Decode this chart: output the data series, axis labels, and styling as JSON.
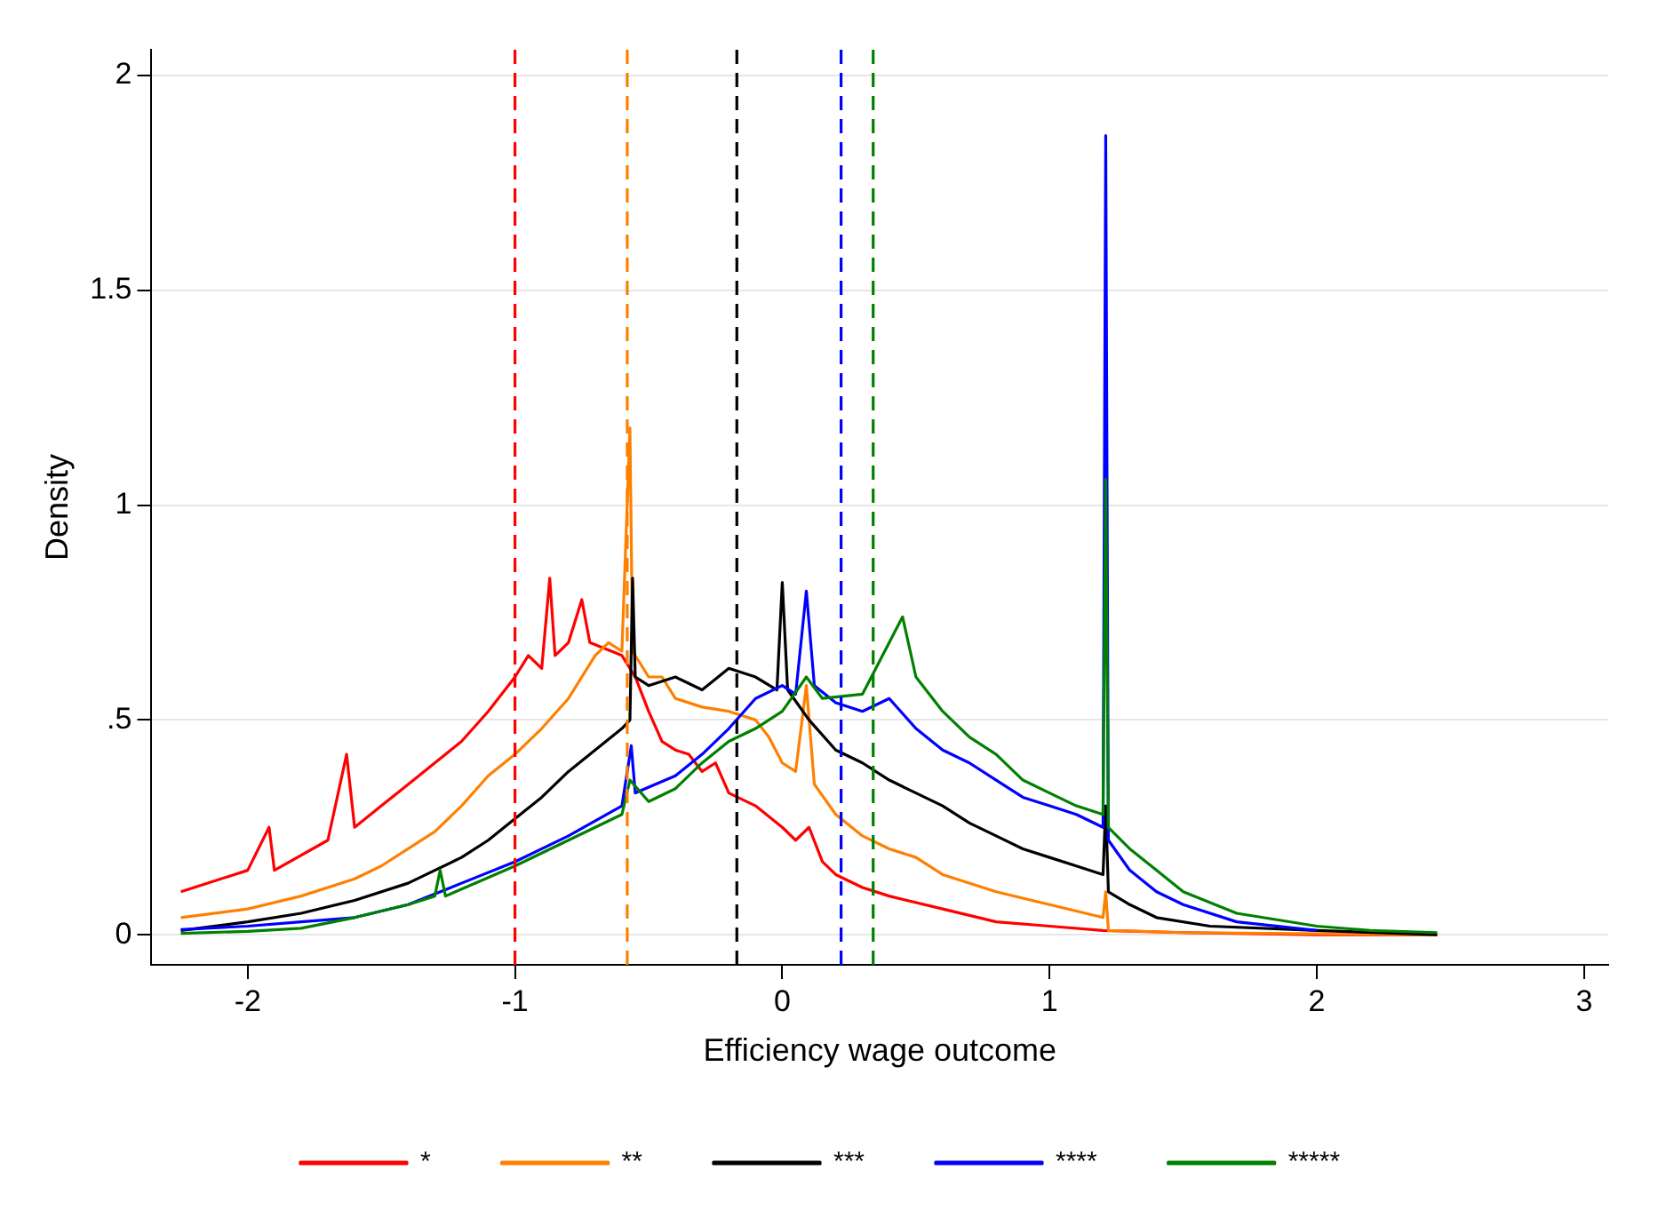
{
  "chart_data": {
    "type": "line",
    "xlabel": "Efficiency wage outcome",
    "ylabel": "Density",
    "xlim": [
      -2.36,
      3.09
    ],
    "xticks": [
      -2,
      -1,
      0,
      1,
      2,
      3
    ],
    "ylim": [
      -0.07,
      2.06
    ],
    "yticks": [
      0,
      {
        "value": 0.5,
        "label": ".5"
      },
      1,
      1.5,
      2
    ],
    "grid": "y",
    "legend": "bottom",
    "marker": "none",
    "line_style": "solid",
    "series": [
      {
        "name": "*",
        "color": "#ff0000",
        "x": [
          -2.25,
          -2.0,
          -1.92,
          -1.9,
          -1.7,
          -1.63,
          -1.6,
          -1.5,
          -1.4,
          -1.3,
          -1.2,
          -1.1,
          -1.0,
          -0.95,
          -0.9,
          -0.87,
          -0.85,
          -0.8,
          -0.75,
          -0.72,
          -0.6,
          -0.55,
          -0.5,
          -0.45,
          -0.4,
          -0.35,
          -0.3,
          -0.25,
          -0.2,
          -0.1,
          0,
          0.05,
          0.1,
          0.15,
          0.2,
          0.3,
          0.4,
          0.6,
          0.8,
          1.0,
          1.2,
          1.5,
          2.0,
          2.45
        ],
        "values": [
          0.1,
          0.15,
          0.25,
          0.15,
          0.22,
          0.42,
          0.25,
          0.3,
          0.35,
          0.4,
          0.45,
          0.52,
          0.6,
          0.65,
          0.62,
          0.83,
          0.65,
          0.68,
          0.78,
          0.68,
          0.65,
          0.6,
          0.52,
          0.45,
          0.43,
          0.42,
          0.38,
          0.4,
          0.33,
          0.3,
          0.25,
          0.22,
          0.25,
          0.17,
          0.14,
          0.11,
          0.09,
          0.06,
          0.03,
          0.02,
          0.01,
          0.005,
          0,
          0
        ]
      },
      {
        "name": "**",
        "color": "#ff8000",
        "x": [
          -2.25,
          -2.0,
          -1.8,
          -1.6,
          -1.5,
          -1.4,
          -1.3,
          -1.2,
          -1.1,
          -1.0,
          -0.9,
          -0.8,
          -0.75,
          -0.7,
          -0.65,
          -0.6,
          -0.57,
          -0.56,
          -0.5,
          -0.45,
          -0.4,
          -0.3,
          -0.2,
          -0.1,
          -0.05,
          0,
          0.05,
          0.09,
          0.12,
          0.2,
          0.3,
          0.4,
          0.5,
          0.6,
          0.8,
          1.0,
          1.2,
          1.21,
          1.22,
          1.5,
          2.45
        ],
        "values": [
          0.04,
          0.06,
          0.09,
          0.13,
          0.16,
          0.2,
          0.24,
          0.3,
          0.37,
          0.42,
          0.48,
          0.55,
          0.6,
          0.65,
          0.68,
          0.66,
          1.18,
          0.66,
          0.6,
          0.6,
          0.55,
          0.53,
          0.52,
          0.5,
          0.46,
          0.4,
          0.38,
          0.58,
          0.35,
          0.28,
          0.23,
          0.2,
          0.18,
          0.14,
          0.1,
          0.07,
          0.04,
          0.1,
          0.01,
          0.005,
          0
        ]
      },
      {
        "name": "***",
        "color": "#000000",
        "x": [
          -2.25,
          -2.0,
          -1.8,
          -1.6,
          -1.4,
          -1.2,
          -1.1,
          -1.0,
          -0.9,
          -0.8,
          -0.7,
          -0.6,
          -0.57,
          -0.56,
          -0.55,
          -0.5,
          -0.4,
          -0.3,
          -0.2,
          -0.1,
          -0.02,
          0,
          0.02,
          0.1,
          0.2,
          0.3,
          0.4,
          0.5,
          0.6,
          0.7,
          0.8,
          0.9,
          1.0,
          1.1,
          1.2,
          1.21,
          1.22,
          1.3,
          1.4,
          1.6,
          2.0,
          2.45
        ],
        "values": [
          0.01,
          0.03,
          0.05,
          0.08,
          0.12,
          0.18,
          0.22,
          0.27,
          0.32,
          0.38,
          0.43,
          0.48,
          0.5,
          0.83,
          0.6,
          0.58,
          0.6,
          0.57,
          0.62,
          0.6,
          0.57,
          0.82,
          0.57,
          0.5,
          0.43,
          0.4,
          0.36,
          0.33,
          0.3,
          0.26,
          0.23,
          0.2,
          0.18,
          0.16,
          0.14,
          0.3,
          0.1,
          0.07,
          0.04,
          0.02,
          0.01,
          0
        ]
      },
      {
        "name": "****",
        "color": "#0000ff",
        "x": [
          -2.25,
          -2.0,
          -1.8,
          -1.6,
          -1.4,
          -1.2,
          -1.0,
          -0.8,
          -0.6,
          -0.565,
          -0.55,
          -0.4,
          -0.3,
          -0.2,
          -0.1,
          0,
          0.05,
          0.09,
          0.12,
          0.2,
          0.3,
          0.4,
          0.5,
          0.6,
          0.7,
          0.8,
          0.9,
          1.0,
          1.1,
          1.2,
          1.21,
          1.22,
          1.3,
          1.4,
          1.5,
          1.7,
          2.0
        ],
        "values": [
          0.012,
          0.02,
          0.03,
          0.04,
          0.07,
          0.12,
          0.17,
          0.23,
          0.3,
          0.44,
          0.33,
          0.37,
          0.42,
          0.48,
          0.55,
          0.58,
          0.56,
          0.8,
          0.58,
          0.54,
          0.52,
          0.55,
          0.48,
          0.43,
          0.4,
          0.36,
          0.32,
          0.3,
          0.28,
          0.25,
          1.86,
          0.22,
          0.15,
          0.1,
          0.07,
          0.03,
          0.01
        ]
      },
      {
        "name": "*****",
        "color": "#008000",
        "x": [
          -2.25,
          -2.0,
          -1.8,
          -1.6,
          -1.4,
          -1.3,
          -1.28,
          -1.26,
          -1.0,
          -0.8,
          -0.6,
          -0.57,
          -0.5,
          -0.4,
          -0.3,
          -0.2,
          -0.1,
          0,
          0.09,
          0.15,
          0.3,
          0.45,
          0.5,
          0.6,
          0.7,
          0.8,
          0.9,
          1.0,
          1.1,
          1.2,
          1.21,
          1.22,
          1.3,
          1.4,
          1.5,
          1.7,
          2.0,
          2.2,
          2.45
        ],
        "values": [
          0.003,
          0.008,
          0.015,
          0.04,
          0.07,
          0.09,
          0.15,
          0.09,
          0.16,
          0.22,
          0.28,
          0.36,
          0.31,
          0.34,
          0.4,
          0.45,
          0.48,
          0.52,
          0.6,
          0.55,
          0.56,
          0.74,
          0.6,
          0.52,
          0.46,
          0.42,
          0.36,
          0.33,
          0.3,
          0.28,
          1.06,
          0.25,
          0.2,
          0.15,
          0.1,
          0.05,
          0.02,
          0.01,
          0.005
        ]
      }
    ],
    "ref_lines": [
      {
        "axis": "x",
        "value": -1,
        "color": "#ff0000",
        "line_style": "dashed"
      },
      {
        "axis": "x",
        "value": -0.58,
        "color": "#ff8000",
        "line_style": "dashed"
      },
      {
        "axis": "x",
        "value": -0.17,
        "color": "#000000",
        "line_style": "dashed"
      },
      {
        "axis": "x",
        "value": 0.22,
        "color": "#0000ff",
        "line_style": "dashed"
      },
      {
        "axis": "x",
        "value": 0.34,
        "color": "#008000",
        "line_style": "dashed"
      }
    ]
  }
}
